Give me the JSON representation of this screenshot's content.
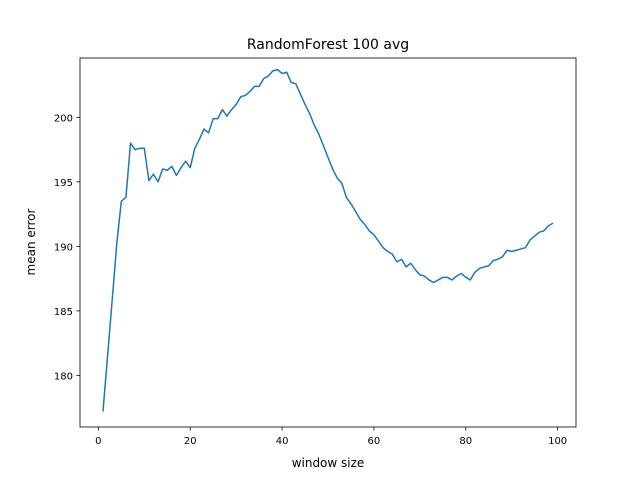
{
  "chart_data": {
    "type": "line",
    "title": "RandomForest 100 avg",
    "xlabel": "window size",
    "ylabel": "mean error",
    "xlim": [
      -4,
      104
    ],
    "ylim": [
      176,
      204.6
    ],
    "xticks": [
      0,
      20,
      40,
      60,
      80,
      100
    ],
    "yticks": [
      180,
      185,
      190,
      195,
      200
    ],
    "grid": false,
    "series": [
      {
        "color": "#1f77b4",
        "x": [
          1,
          2,
          3,
          4,
          5,
          6,
          7,
          8,
          9,
          10,
          11,
          12,
          13,
          14,
          15,
          16,
          17,
          18,
          19,
          20,
          21,
          22,
          23,
          24,
          25,
          26,
          27,
          28,
          29,
          30,
          31,
          32,
          33,
          34,
          35,
          36,
          37,
          38,
          39,
          40,
          41,
          42,
          43,
          44,
          45,
          46,
          47,
          48,
          49,
          50,
          51,
          52,
          53,
          54,
          55,
          56,
          57,
          58,
          59,
          60,
          61,
          62,
          63,
          64,
          65,
          66,
          67,
          68,
          69,
          70,
          71,
          72,
          73,
          74,
          75,
          76,
          77,
          78,
          79,
          80,
          81,
          82,
          83,
          84,
          85,
          86,
          87,
          88,
          89,
          90,
          91,
          92,
          93,
          94,
          95,
          96,
          97,
          98,
          99
        ],
        "y": [
          177.2,
          181.5,
          185.8,
          190.2,
          193.5,
          193.8,
          198.0,
          197.5,
          197.6,
          197.6,
          195.1,
          195.6,
          195.0,
          196.0,
          195.9,
          196.2,
          195.5,
          196.1,
          196.6,
          196.1,
          197.6,
          198.3,
          199.1,
          198.8,
          199.9,
          199.9,
          200.6,
          200.1,
          200.6,
          201.0,
          201.6,
          201.7,
          202.0,
          202.4,
          202.4,
          203.0,
          203.2,
          203.6,
          203.7,
          203.4,
          203.5,
          202.7,
          202.6,
          201.8,
          201.0,
          200.3,
          199.4,
          198.7,
          197.8,
          196.9,
          196.0,
          195.3,
          194.9,
          193.8,
          193.3,
          192.7,
          192.1,
          191.7,
          191.2,
          190.9,
          190.4,
          189.9,
          189.6,
          189.4,
          188.8,
          189.0,
          188.4,
          188.7,
          188.2,
          187.8,
          187.7,
          187.4,
          187.2,
          187.4,
          187.6,
          187.6,
          187.4,
          187.7,
          187.9,
          187.6,
          187.4,
          188.0,
          188.3,
          188.4,
          188.5,
          188.9,
          189.0,
          189.2,
          189.7,
          189.6,
          189.7,
          189.8,
          189.9,
          190.5,
          190.8,
          191.1,
          191.2,
          191.6,
          191.8
        ]
      }
    ]
  }
}
